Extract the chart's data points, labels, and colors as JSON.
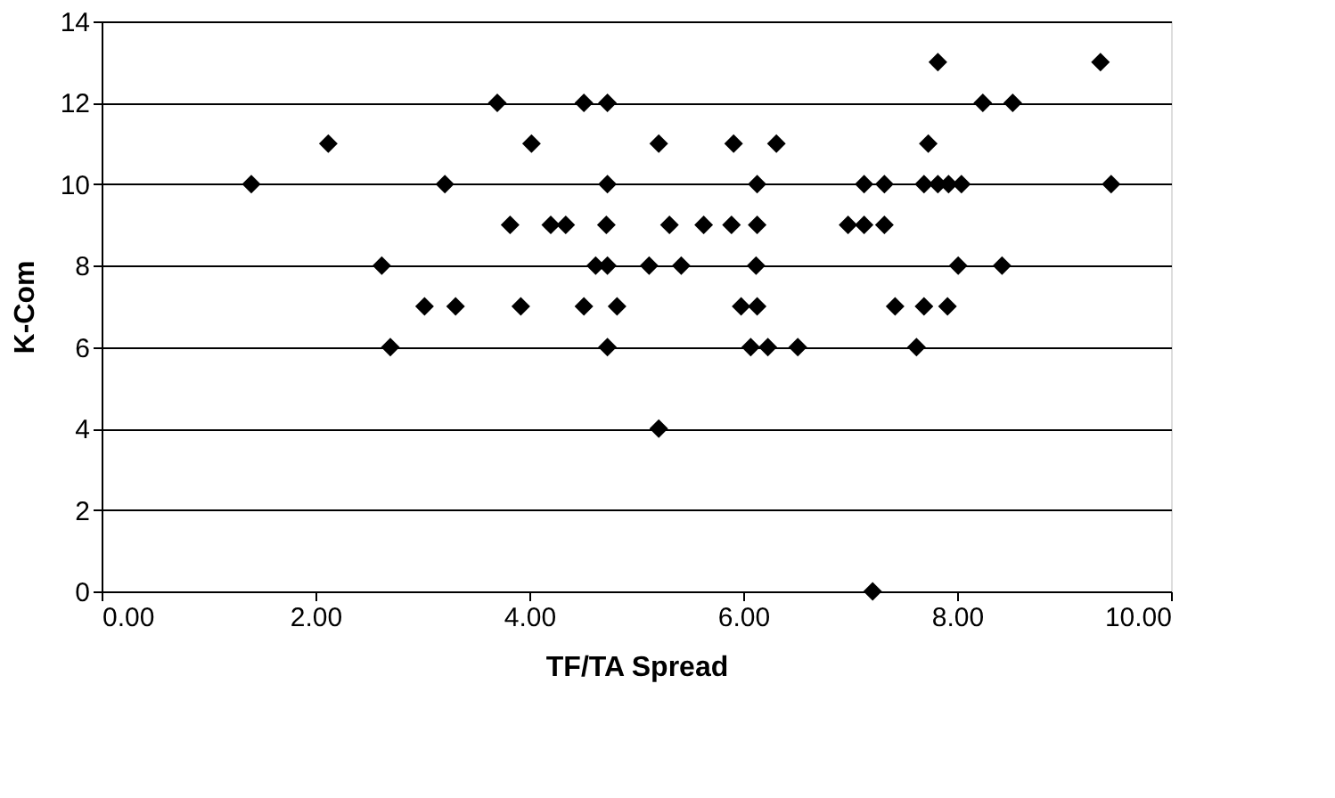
{
  "chart_data": {
    "type": "scatter",
    "xlabel": "TF/TA Spread",
    "ylabel": "K-Com",
    "x": [
      1.4,
      2.12,
      2.62,
      2.7,
      3.02,
      3.21,
      3.31,
      3.7,
      3.82,
      3.92,
      4.02,
      4.2,
      4.34,
      4.51,
      4.51,
      4.62,
      4.73,
      4.73,
      4.72,
      4.73,
      4.82,
      4.73,
      5.12,
      5.21,
      5.21,
      5.31,
      5.42,
      5.63,
      5.91,
      5.89,
      6.13,
      6.13,
      6.31,
      6.12,
      5.98,
      6.13,
      6.07,
      6.23,
      6.51,
      6.98,
      7.13,
      7.13,
      7.32,
      7.32,
      7.21,
      7.42,
      7.62,
      7.69,
      7.73,
      7.82,
      7.69,
      7.82,
      7.92,
      8.04,
      7.91,
      8.01,
      8.24,
      8.52,
      8.42,
      9.34,
      9.44
    ],
    "series": [
      {
        "color": "#000000",
        "values": [
          10,
          11,
          8,
          6,
          7,
          10,
          7,
          12,
          9,
          7,
          11,
          9,
          9,
          12,
          7,
          8,
          12,
          10,
          9,
          8,
          7,
          6,
          8,
          11,
          4,
          9,
          8,
          9,
          11,
          9,
          9,
          10,
          11,
          8,
          7,
          7,
          6,
          6,
          6,
          9,
          10,
          9,
          10,
          9,
          0,
          7,
          6,
          7,
          11,
          13,
          10,
          10,
          10,
          10,
          7,
          8,
          12,
          12,
          8,
          13,
          10
        ]
      }
    ],
    "marker": "diamond",
    "grid": "y",
    "legend": false,
    "xlim": [
      0,
      10
    ],
    "xticks": [
      {
        "value": 0,
        "label": "0.00"
      },
      {
        "value": 2,
        "label": "2.00"
      },
      {
        "value": 4,
        "label": "4.00"
      },
      {
        "value": 6,
        "label": "6.00"
      },
      {
        "value": 8,
        "label": "8.00"
      },
      {
        "value": 10,
        "label": "10.00"
      }
    ],
    "ylim": [
      0,
      14
    ],
    "yticks": [
      0,
      2,
      4,
      6,
      8,
      10,
      12,
      14
    ]
  }
}
